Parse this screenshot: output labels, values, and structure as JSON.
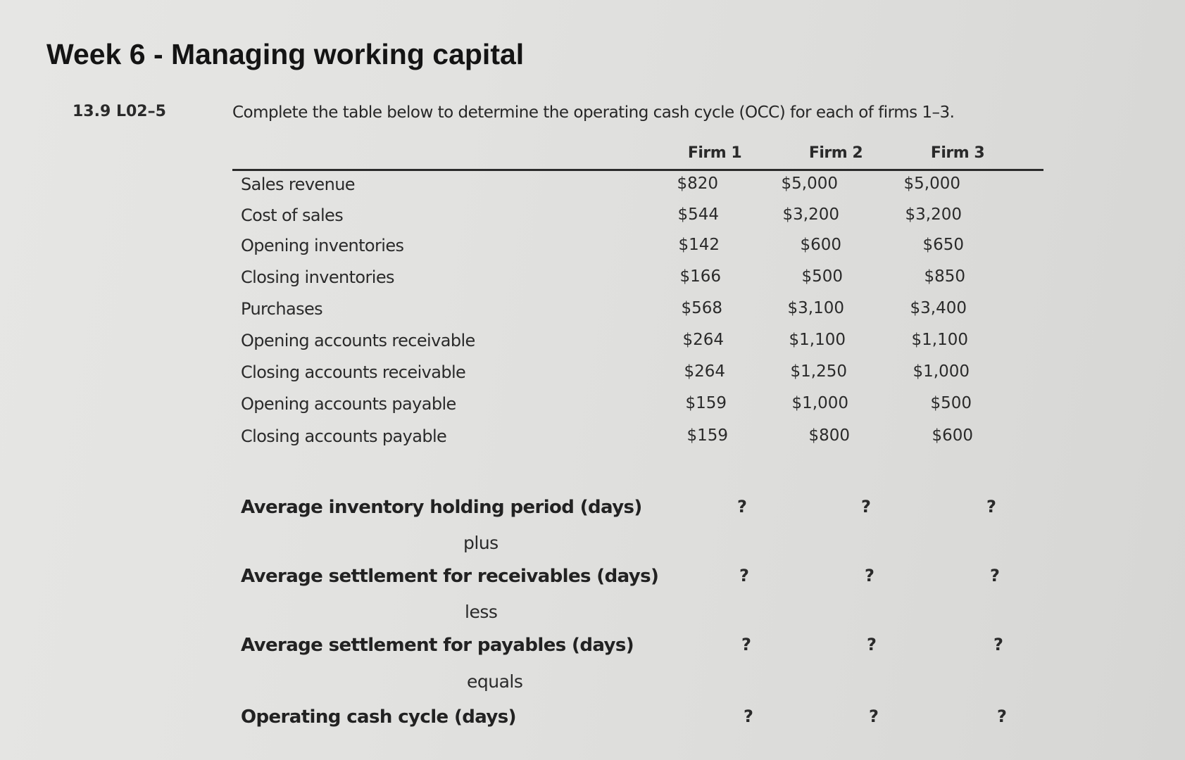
{
  "page": {
    "title": "Week 6 - Managing working capital"
  },
  "question": {
    "number": "13.9  L02–5",
    "instruction": "Complete the table below to determine the operating cash cycle (OCC) for each of firms 1–3."
  },
  "table": {
    "columns": [
      "Firm 1",
      "Firm 2",
      "Firm 3"
    ],
    "rows": [
      {
        "label": "Sales revenue",
        "values": [
          "$820",
          "$5,000",
          "$5,000"
        ]
      },
      {
        "label": "Cost of sales",
        "values": [
          "$544",
          "$3,200",
          "$3,200"
        ]
      },
      {
        "label": "Opening inventories",
        "values": [
          "$142",
          "$600",
          "$650"
        ]
      },
      {
        "label": "Closing inventories",
        "values": [
          "$166",
          "$500",
          "$850"
        ]
      },
      {
        "label": "Purchases",
        "values": [
          "$568",
          "$3,100",
          "$3,400"
        ]
      },
      {
        "label": "Opening accounts receivable",
        "values": [
          "$264",
          "$1,100",
          "$1,100"
        ]
      },
      {
        "label": "Closing accounts receivable",
        "values": [
          "$264",
          "$1,250",
          "$1,000"
        ]
      },
      {
        "label": "Opening accounts payable",
        "values": [
          "$159",
          "$1,000",
          "$500"
        ]
      },
      {
        "label": "Closing accounts payable",
        "values": [
          "$159",
          "$800",
          "$600"
        ]
      }
    ],
    "calc_rows": [
      {
        "label": "Average inventory holding period (days)",
        "values": [
          "?",
          "?",
          "?"
        ],
        "connector": "plus"
      },
      {
        "label": "Average settlement for receivables (days)",
        "values": [
          "?",
          "?",
          "?"
        ],
        "connector": "less"
      },
      {
        "label": "Average settlement for payables (days)",
        "values": [
          "?",
          "?",
          "?"
        ],
        "connector": "equals"
      },
      {
        "label": "Operating cash cycle (days)",
        "values": [
          "?",
          "?",
          "?"
        ]
      }
    ]
  }
}
